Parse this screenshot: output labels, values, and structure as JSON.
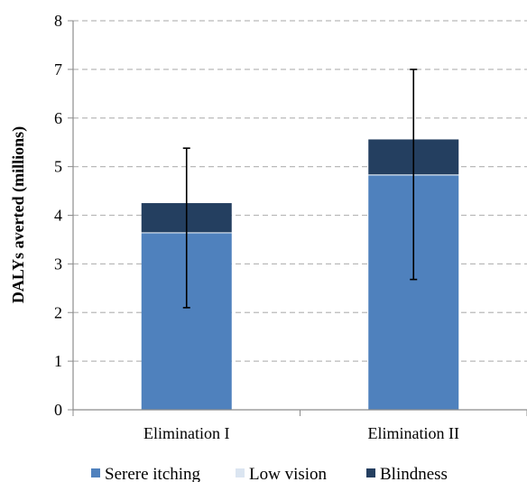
{
  "chart_data": {
    "type": "bar",
    "stacked": true,
    "categories": [
      "Elimination I",
      "Elimination II"
    ],
    "series": [
      {
        "name": "Serere itching",
        "values": [
          3.63,
          4.82
        ],
        "color": "#4f81bd"
      },
      {
        "name": "Low vision",
        "values": [
          0.02,
          0.02
        ],
        "color": "#dbe5f1"
      },
      {
        "name": "Blindness",
        "values": [
          0.6,
          0.72
        ],
        "color": "#243f60"
      }
    ],
    "error_bars": [
      {
        "low": 2.1,
        "high": 5.38
      },
      {
        "low": 2.68,
        "high": 7.0
      }
    ],
    "ylabel": "DALYs averted  (millions)",
    "xlabel": "",
    "ylim": [
      0,
      8
    ],
    "yticks": [
      0,
      1,
      2,
      3,
      4,
      5,
      6,
      7,
      8
    ],
    "grid": true,
    "legend_position": "bottom"
  }
}
